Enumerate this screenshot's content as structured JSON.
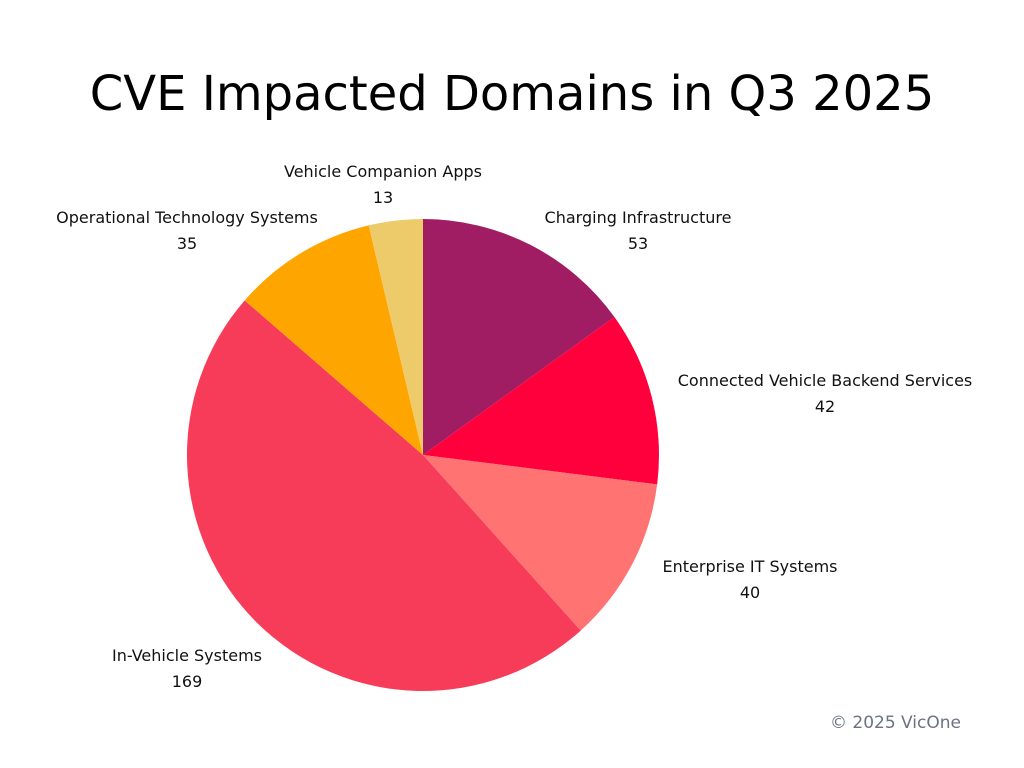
{
  "chart_data": {
    "type": "pie",
    "title": "CVE Impacted Domains in Q3 2025",
    "start_angle": "12 o'clock",
    "direction": "clockwise",
    "data_labels": "outside, name and value",
    "slices": [
      {
        "label": "Charging Infrastructure",
        "value": 53,
        "color": "#A11D63"
      },
      {
        "label": "Connected Vehicle Backend Services",
        "value": 42,
        "color": "#FF003C"
      },
      {
        "label": "Enterprise IT Systems",
        "value": 40,
        "color": "#FF7373"
      },
      {
        "label": "In-Vehicle Systems",
        "value": 169,
        "color": "#F73C5A"
      },
      {
        "label": "Operational Technology Systems",
        "value": 35,
        "color": "#FFA500"
      },
      {
        "label": "Vehicle Companion Apps",
        "value": 13,
        "color": "#EDCB6B"
      }
    ]
  },
  "footer": {
    "credit": "© 2025 VicOne"
  }
}
